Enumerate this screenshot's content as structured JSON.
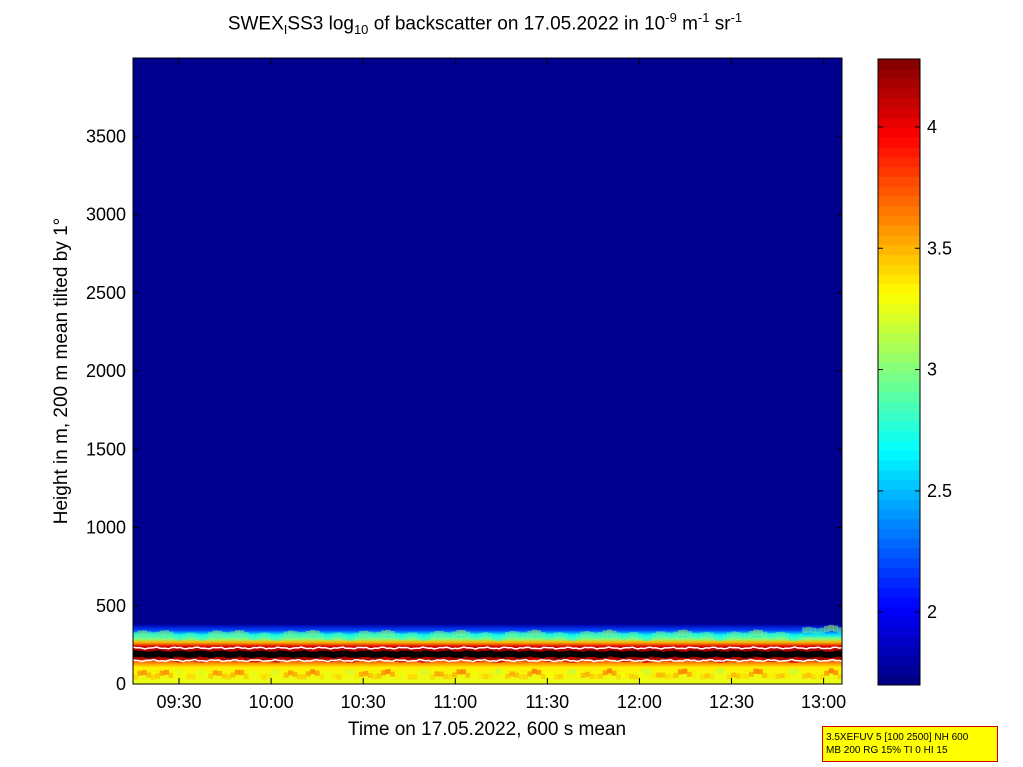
{
  "title": {
    "prefix": "SWEX",
    "sub1": "I",
    "mid": "SS3 log",
    "sub2": "10",
    "rest": " of backscatter on 17.05.2022 in 10",
    "sup1": "-9",
    "unit1": " m",
    "sup2": "-1",
    "unit2": " sr",
    "sup3": "-1"
  },
  "info_box": {
    "line1": "3.5XEFUV 5 [100 2500] NH 600",
    "line2": "MB 200 RG 15% TI 0 HI 15"
  },
  "chart_data": {
    "type": "heatmap",
    "title": "SWEX_ISS3 log10 of backscatter on 17.05.2022 in 10^-9 m^-1 sr^-1",
    "xlabel": "Time on 17.05.2022, 600 s mean",
    "ylabel": "Height in m, 200 m mean tilted by 1°",
    "x_range": [
      "09:15",
      "13:06"
    ],
    "x_ticks": [
      "09:30",
      "10:00",
      "10:30",
      "11:00",
      "11:30",
      "12:00",
      "12:30",
      "13:00"
    ],
    "y_range": [
      0,
      4000
    ],
    "y_ticks": [
      "0",
      "500",
      "1000",
      "1500",
      "2000",
      "2500",
      "3000",
      "3500"
    ],
    "colorbar": {
      "colormap": "jet",
      "range": [
        1.7,
        4.28
      ],
      "ticks": [
        "2",
        "2.5",
        "3",
        "3.5",
        "4"
      ]
    },
    "layers": [
      {
        "height_from_m": 0,
        "height_to_m": 130,
        "log_backscatter": 3.3
      },
      {
        "height_from_m": 130,
        "height_to_m": 240,
        "log_backscatter": 4.2
      },
      {
        "height_from_m": 240,
        "height_to_m": 380,
        "log_backscatter": 3.0
      },
      {
        "height_from_m": 380,
        "height_to_m": 4000,
        "log_backscatter": 1.8
      }
    ],
    "overlay_lines": [
      {
        "name": "black",
        "color": "#000000",
        "height_m": 190
      },
      {
        "name": "white-upper",
        "color": "#ffffff",
        "height_m": 230
      },
      {
        "name": "white-lower",
        "color": "#ffffff",
        "height_m": 150
      }
    ],
    "colors": {
      "background": "#00008f",
      "low_layer": "#e8ff1a",
      "band": "#b40000"
    }
  }
}
